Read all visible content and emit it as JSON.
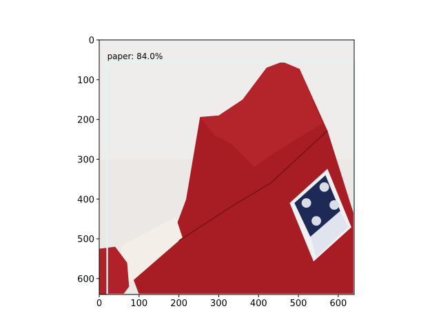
{
  "chart_data": {
    "type": "image",
    "xlim": [
      0,
      640
    ],
    "ylim": [
      640,
      0
    ],
    "xticks": [
      0,
      100,
      200,
      300,
      400,
      500,
      600
    ],
    "yticks": [
      0,
      100,
      200,
      300,
      400,
      500,
      600
    ],
    "boxes": [
      {
        "label": "paper: 84.0%",
        "x0": 20,
        "y0": 55,
        "x1": 640,
        "y1": 640,
        "color": "#e0f4f4"
      }
    ]
  }
}
